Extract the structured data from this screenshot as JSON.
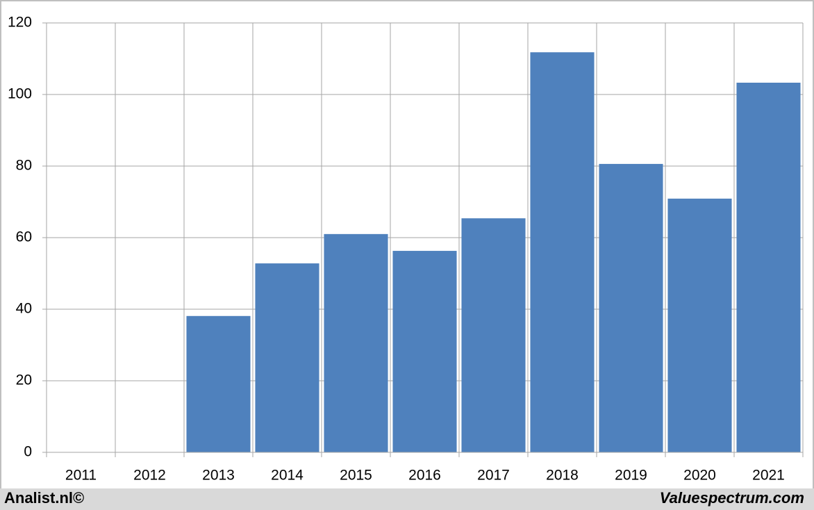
{
  "chart_data": {
    "type": "bar",
    "categories": [
      "2011",
      "2012",
      "2013",
      "2014",
      "2015",
      "2016",
      "2017",
      "2018",
      "2019",
      "2020",
      "2021"
    ],
    "values": [
      null,
      null,
      38.1,
      52.8,
      61,
      56.3,
      65.4,
      111.8,
      80.6,
      70.9,
      103.3
    ],
    "color": "#4f81bd",
    "ylim": [
      0,
      120
    ],
    "yticks": [
      0,
      20,
      40,
      60,
      80,
      100,
      120
    ],
    "grid": true
  },
  "footer": {
    "left": "Analist.nl©",
    "right": "Valuespectrum.com"
  }
}
